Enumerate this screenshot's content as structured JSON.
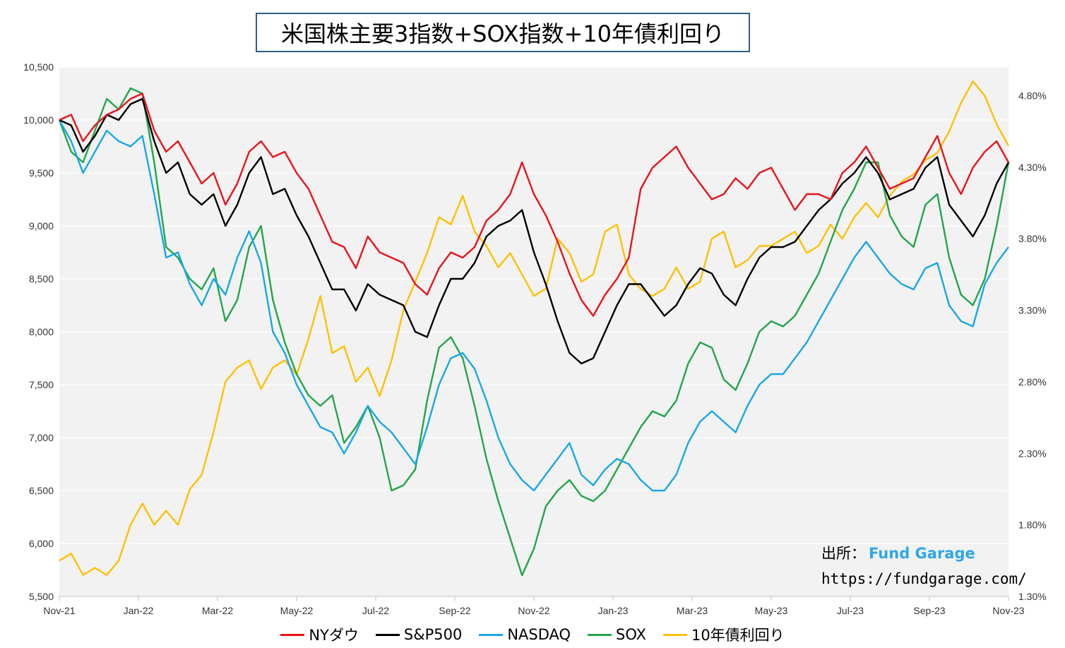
{
  "title": "米国株主要3指数+SOX指数+10年債利回り",
  "source": {
    "label": "出所：",
    "brand": "Fund Garage",
    "url": "https://fundgarage.com/"
  },
  "chart_data": {
    "type": "line",
    "x_ticks": [
      "Nov-21",
      "Jan-22",
      "Mar-22",
      "May-22",
      "Jul-22",
      "Sep-22",
      "Nov-22",
      "Jan-23",
      "Mar-23",
      "May-23",
      "Jul-23",
      "Sep-23",
      "Nov-23"
    ],
    "y_left": {
      "ticks": [
        "10,500",
        "10,000",
        "9,500",
        "9,000",
        "8,500",
        "8,000",
        "7,500",
        "7,000",
        "6,500",
        "6,000",
        "5,500"
      ],
      "min": 5500,
      "max": 10500
    },
    "y_right": {
      "ticks": [
        "4.80%",
        "4.30%",
        "3.80%",
        "3.30%",
        "2.80%",
        "2.30%",
        "1.80%",
        "1.30%"
      ],
      "min": 1.3,
      "max": 5.0
    },
    "grid": "horizontal",
    "legend_position": "bottom",
    "series": [
      {
        "name": "NYダウ",
        "color": "#e8141b",
        "axis": "left",
        "values": [
          10000,
          10050,
          9800,
          9950,
          10050,
          10100,
          10200,
          10250,
          9900,
          9700,
          9800,
          9600,
          9400,
          9500,
          9200,
          9400,
          9700,
          9800,
          9650,
          9700,
          9500,
          9350,
          9100,
          8850,
          8800,
          8600,
          8900,
          8750,
          8700,
          8650,
          8450,
          8350,
          8600,
          8750,
          8700,
          8800,
          9050,
          9150,
          9300,
          9600,
          9300,
          9100,
          8850,
          8550,
          8300,
          8150,
          8350,
          8500,
          8700,
          9350,
          9550,
          9650,
          9750,
          9550,
          9400,
          9250,
          9300,
          9450,
          9350,
          9500,
          9550,
          9350,
          9150,
          9300,
          9300,
          9250,
          9500,
          9600,
          9750,
          9550,
          9350,
          9400,
          9450,
          9650,
          9850,
          9500,
          9300,
          9550,
          9700,
          9800,
          9600
        ]
      },
      {
        "name": "S&P500",
        "color": "#000000",
        "axis": "left",
        "values": [
          10000,
          9950,
          9700,
          9850,
          10050,
          10000,
          10150,
          10200,
          9800,
          9500,
          9600,
          9300,
          9200,
          9300,
          9000,
          9200,
          9500,
          9650,
          9300,
          9350,
          9100,
          8900,
          8650,
          8400,
          8400,
          8200,
          8450,
          8350,
          8300,
          8250,
          8000,
          7950,
          8250,
          8500,
          8500,
          8650,
          8900,
          9000,
          9050,
          9150,
          8750,
          8450,
          8100,
          7800,
          7700,
          7750,
          8000,
          8250,
          8450,
          8450,
          8300,
          8150,
          8250,
          8450,
          8600,
          8550,
          8350,
          8250,
          8500,
          8700,
          8800,
          8800,
          8850,
          9000,
          9150,
          9250,
          9400,
          9500,
          9650,
          9500,
          9250,
          9300,
          9350,
          9550,
          9650,
          9200,
          9050,
          8900,
          9100,
          9400,
          9600
        ]
      },
      {
        "name": "NASDAQ",
        "color": "#1aa7e8",
        "axis": "left",
        "values": [
          10000,
          9800,
          9500,
          9700,
          9900,
          9800,
          9750,
          9850,
          9300,
          8700,
          8750,
          8450,
          8250,
          8500,
          8350,
          8700,
          8950,
          8650,
          8000,
          7800,
          7500,
          7300,
          7100,
          7050,
          6850,
          7050,
          7300,
          7150,
          7050,
          6900,
          6750,
          7100,
          7500,
          7750,
          7800,
          7650,
          7350,
          7000,
          6750,
          6600,
          6500,
          6650,
          6800,
          6950,
          6650,
          6550,
          6700,
          6800,
          6750,
          6600,
          6500,
          6500,
          6650,
          6950,
          7150,
          7250,
          7150,
          7050,
          7300,
          7500,
          7600,
          7600,
          7750,
          7900,
          8100,
          8300,
          8500,
          8700,
          8850,
          8700,
          8550,
          8450,
          8400,
          8600,
          8650,
          8250,
          8100,
          8050,
          8450,
          8650,
          8800
        ]
      },
      {
        "name": "SOX",
        "color": "#22a64a",
        "axis": "left",
        "values": [
          10000,
          9700,
          9600,
          9900,
          10200,
          10100,
          10300,
          10250,
          9600,
          8800,
          8700,
          8500,
          8400,
          8600,
          8100,
          8300,
          8800,
          9000,
          8300,
          7900,
          7600,
          7400,
          7300,
          7400,
          6950,
          7100,
          7300,
          7000,
          6500,
          6550,
          6700,
          7350,
          7850,
          7950,
          7750,
          7300,
          6800,
          6400,
          6050,
          5700,
          5950,
          6350,
          6500,
          6600,
          6450,
          6400,
          6500,
          6700,
          6900,
          7100,
          7250,
          7200,
          7350,
          7700,
          7900,
          7850,
          7550,
          7450,
          7700,
          8000,
          8100,
          8050,
          8150,
          8350,
          8550,
          8850,
          9150,
          9350,
          9600,
          9600,
          9100,
          8900,
          8800,
          9200,
          9300,
          8700,
          8350,
          8250,
          8500,
          9000,
          9600
        ]
      },
      {
        "name": "10年債利回り",
        "color": "#ffc000",
        "axis": "right",
        "values": [
          1.55,
          1.6,
          1.45,
          1.5,
          1.45,
          1.55,
          1.8,
          1.95,
          1.8,
          1.9,
          1.8,
          2.05,
          2.15,
          2.45,
          2.8,
          2.9,
          2.95,
          2.75,
          2.9,
          2.95,
          2.85,
          3.1,
          3.4,
          3.0,
          3.05,
          2.8,
          2.9,
          2.7,
          2.95,
          3.3,
          3.5,
          3.7,
          3.95,
          3.9,
          4.1,
          3.85,
          3.75,
          3.6,
          3.7,
          3.55,
          3.4,
          3.45,
          3.8,
          3.7,
          3.5,
          3.55,
          3.85,
          3.9,
          3.55,
          3.45,
          3.4,
          3.45,
          3.6,
          3.45,
          3.5,
          3.8,
          3.85,
          3.6,
          3.65,
          3.75,
          3.75,
          3.8,
          3.85,
          3.7,
          3.75,
          3.9,
          3.8,
          3.95,
          4.05,
          3.95,
          4.1,
          4.2,
          4.25,
          4.35,
          4.4,
          4.55,
          4.75,
          4.9,
          4.8,
          4.6,
          4.45
        ]
      }
    ]
  }
}
